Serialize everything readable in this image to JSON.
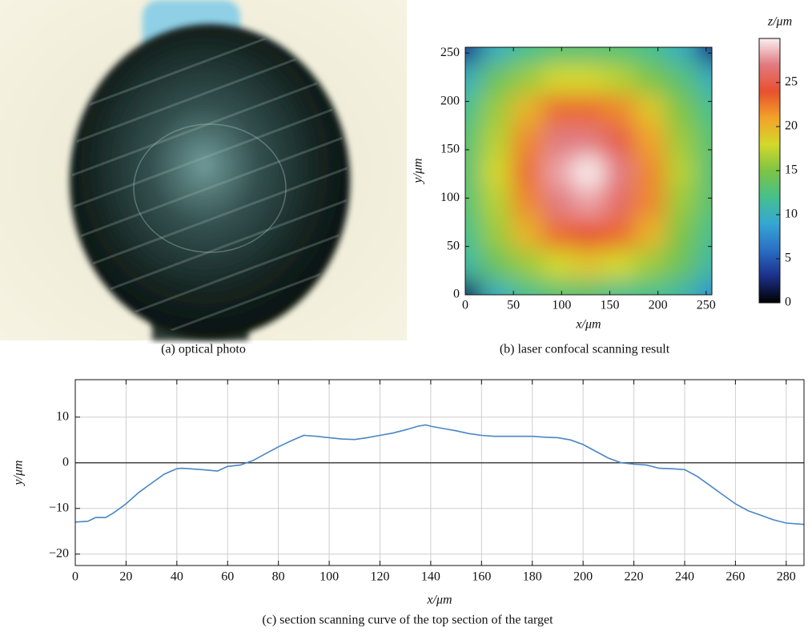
{
  "chart_data": [
    {
      "type": "image",
      "caption": "(a) optical photo"
    },
    {
      "type": "contour",
      "caption": "(b) laser confocal scanning result",
      "xlabel": "x/μm",
      "ylabel": "y/μm",
      "xlim": [
        0,
        256
      ],
      "ylim": [
        0,
        256
      ],
      "xticks": [
        0,
        50,
        100,
        150,
        200,
        250
      ],
      "yticks": [
        0,
        50,
        100,
        150,
        200,
        250
      ],
      "x": [
        0,
        32,
        64,
        96,
        128,
        160,
        192,
        224,
        256
      ],
      "y": [
        0,
        32,
        64,
        96,
        128,
        160,
        192,
        224,
        256
      ],
      "z": [
        [
          2,
          10,
          12,
          13,
          13,
          12,
          12,
          11,
          8
        ],
        [
          11,
          14,
          16,
          18,
          19,
          18,
          16,
          14,
          11
        ],
        [
          12,
          16,
          20,
          23,
          24,
          23,
          20,
          15,
          12
        ],
        [
          13,
          17,
          22,
          27,
          28,
          26,
          22,
          16,
          13
        ],
        [
          13,
          18,
          23,
          28,
          30,
          27,
          22,
          17,
          13
        ],
        [
          13,
          17,
          22,
          27,
          27,
          25,
          21,
          16,
          13
        ],
        [
          12,
          16,
          20,
          23,
          23,
          22,
          19,
          15,
          12
        ],
        [
          10,
          14,
          16,
          18,
          18,
          17,
          15,
          13,
          10
        ],
        [
          3,
          10,
          12,
          13,
          13,
          13,
          12,
          10,
          3
        ]
      ],
      "colorbar": {
        "label": "z/μm",
        "lim": [
          0,
          30
        ],
        "ticks": [
          0,
          5,
          10,
          15,
          20,
          25
        ],
        "colors": [
          "#000000",
          "#1b2f8a",
          "#2a6fc4",
          "#35a7d4",
          "#46c08c",
          "#7ec444",
          "#d4d82a",
          "#f2a22a",
          "#e8502e",
          "#e07a80",
          "#fbeff0"
        ]
      }
    },
    {
      "type": "line",
      "caption": "(c) section scanning curve of the top section of the target",
      "xlabel": "x/μm",
      "ylabel": "y/μm",
      "xlim": [
        0,
        287
      ],
      "ylim": [
        -22.5,
        18.2
      ],
      "xticks": [
        0,
        20,
        40,
        60,
        80,
        100,
        120,
        140,
        160,
        180,
        200,
        220,
        240,
        260,
        280
      ],
      "yticks": [
        {
          "value": -20,
          "label": "−20"
        },
        {
          "value": -10,
          "label": "−10"
        },
        0,
        10
      ],
      "grid": true,
      "zero_line": true,
      "color": "#4a86c5",
      "x": [
        0,
        5,
        8,
        12,
        15,
        20,
        25,
        30,
        35,
        40,
        42,
        50,
        56,
        60,
        65,
        70,
        75,
        80,
        85,
        90,
        95,
        100,
        105,
        110,
        115,
        120,
        125,
        130,
        135,
        138,
        140,
        145,
        150,
        155,
        160,
        165,
        170,
        175,
        180,
        185,
        190,
        195,
        200,
        205,
        210,
        215,
        220,
        225,
        230,
        235,
        240,
        245,
        250,
        255,
        260,
        265,
        270,
        275,
        280,
        287
      ],
      "values": [
        -13,
        -12.8,
        -12,
        -12,
        -11,
        -9,
        -6.5,
        -4.5,
        -2.5,
        -1.3,
        -1.2,
        -1.5,
        -1.8,
        -0.8,
        -0.5,
        0.5,
        2,
        3.5,
        4.8,
        6,
        5.8,
        5.5,
        5.2,
        5.1,
        5.5,
        6,
        6.5,
        7.2,
        8,
        8.3,
        8,
        7.5,
        7,
        6.4,
        6,
        5.8,
        5.8,
        5.8,
        5.8,
        5.6,
        5.5,
        5,
        4,
        2.5,
        1,
        0,
        -0.3,
        -0.5,
        -1.2,
        -1.3,
        -1.5,
        -3,
        -5,
        -7,
        -9,
        -10.5,
        -11.5,
        -12.5,
        -13.2,
        -13.5
      ]
    }
  ]
}
